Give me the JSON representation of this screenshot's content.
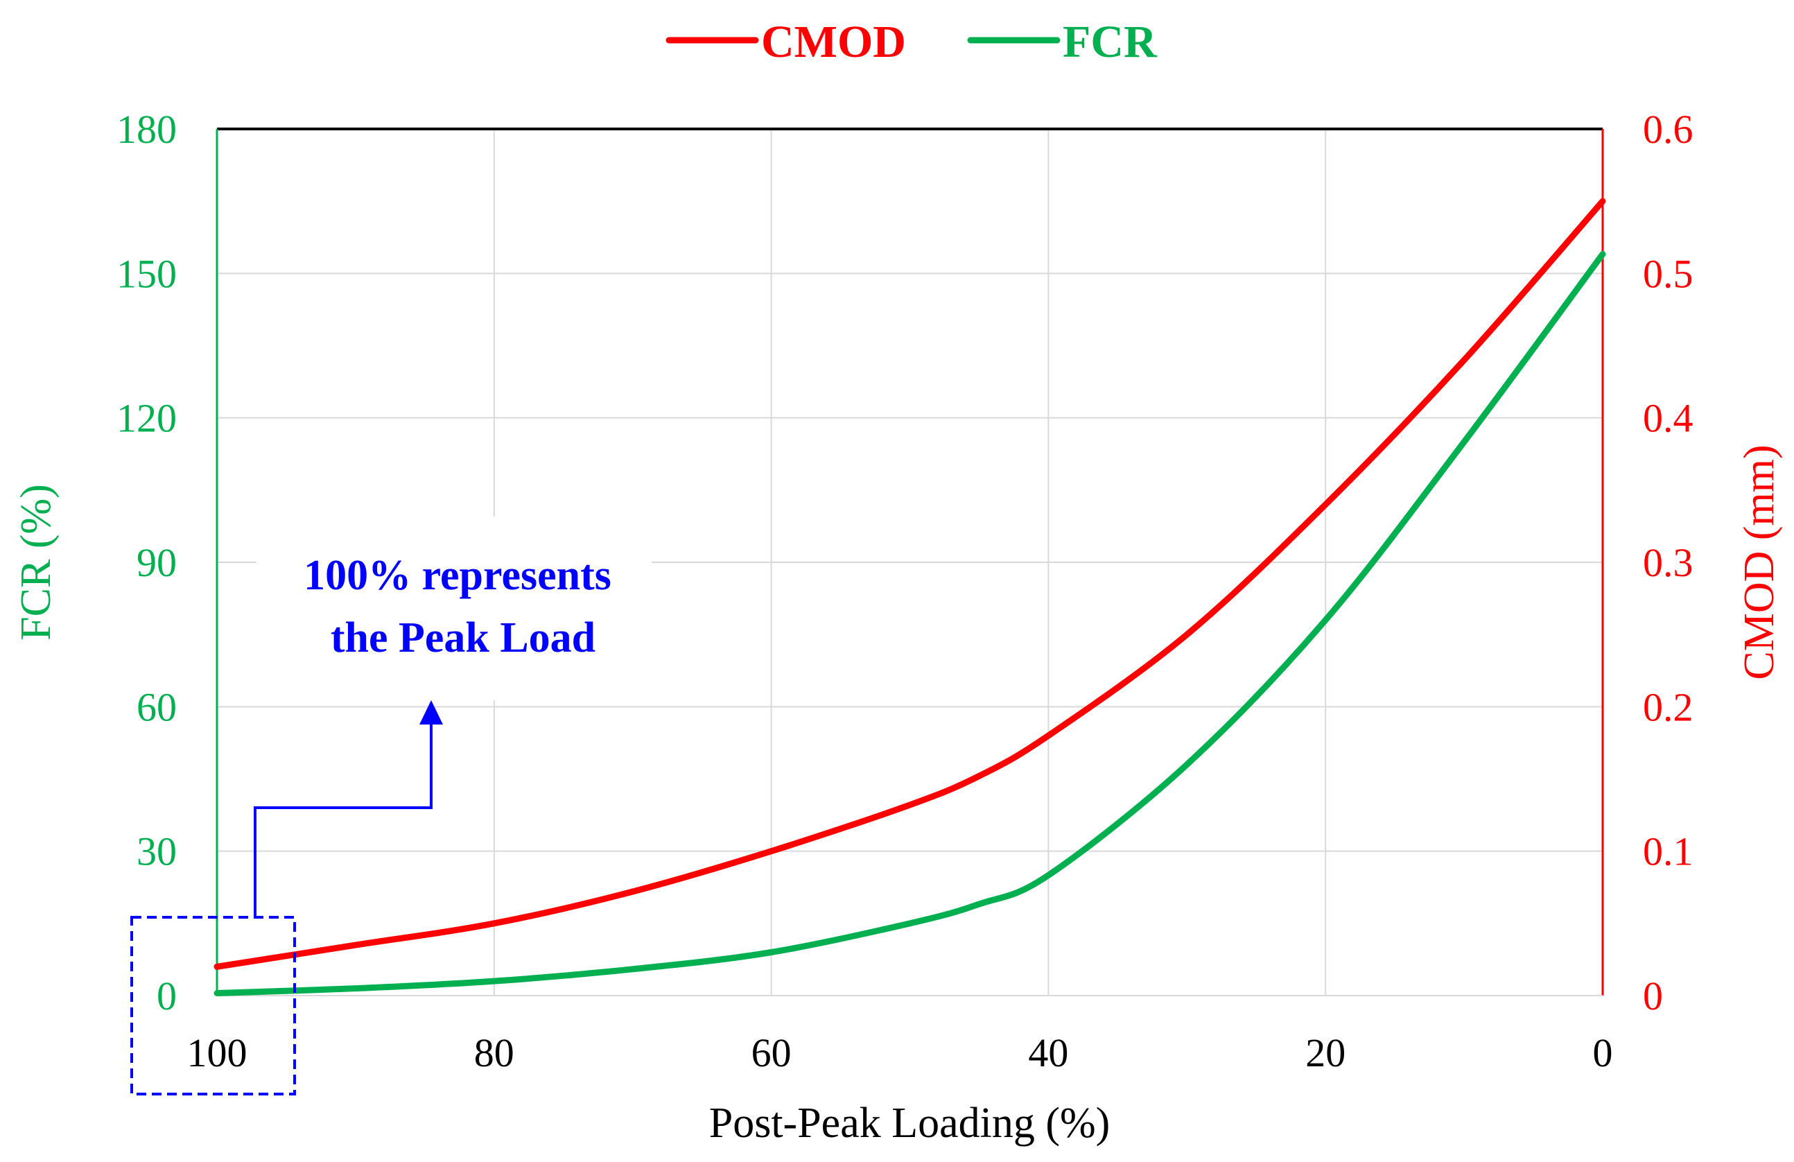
{
  "chart_data": {
    "type": "line",
    "title": "",
    "xlabel": "Post-Peak Loading (%)",
    "ylabel_left": "FCR (%)",
    "ylabel_right": "CMOD (mm)",
    "xlim": [
      100,
      0
    ],
    "ylim_left": [
      0,
      180
    ],
    "ylim_right": [
      0,
      0.6
    ],
    "x_ticks": [
      "100",
      "80",
      "60",
      "40",
      "20",
      "0"
    ],
    "y_left_ticks": [
      "0",
      "30",
      "60",
      "90",
      "120",
      "150",
      "180"
    ],
    "y_right_ticks": [
      "0",
      "0.1",
      "0.2",
      "0.3",
      "0.4",
      "0.5",
      "0.6"
    ],
    "grid": true,
    "legend": {
      "position": "top-center",
      "entries": [
        "CMOD",
        "FCR"
      ]
    },
    "series": [
      {
        "name": "CMOD",
        "axis": "right",
        "color": "#ff0000",
        "x": [
          100,
          90,
          80,
          70,
          60,
          50,
          45,
          40,
          30,
          20,
          10,
          0
        ],
        "values": [
          0.02,
          0.035,
          0.05,
          0.072,
          0.1,
          0.132,
          0.152,
          0.18,
          0.25,
          0.34,
          0.44,
          0.55
        ]
      },
      {
        "name": "FCR",
        "axis": "left",
        "color": "#00b050",
        "x": [
          100,
          90,
          80,
          70,
          60,
          50,
          45,
          40,
          30,
          20,
          10,
          0
        ],
        "values": [
          0.5,
          1.5,
          3,
          5.5,
          9,
          15,
          19,
          25,
          48,
          78,
          115,
          154
        ]
      }
    ],
    "annotation": {
      "lines": [
        "100% represents",
        "the Peak Load"
      ],
      "color": "#0000ff"
    }
  }
}
